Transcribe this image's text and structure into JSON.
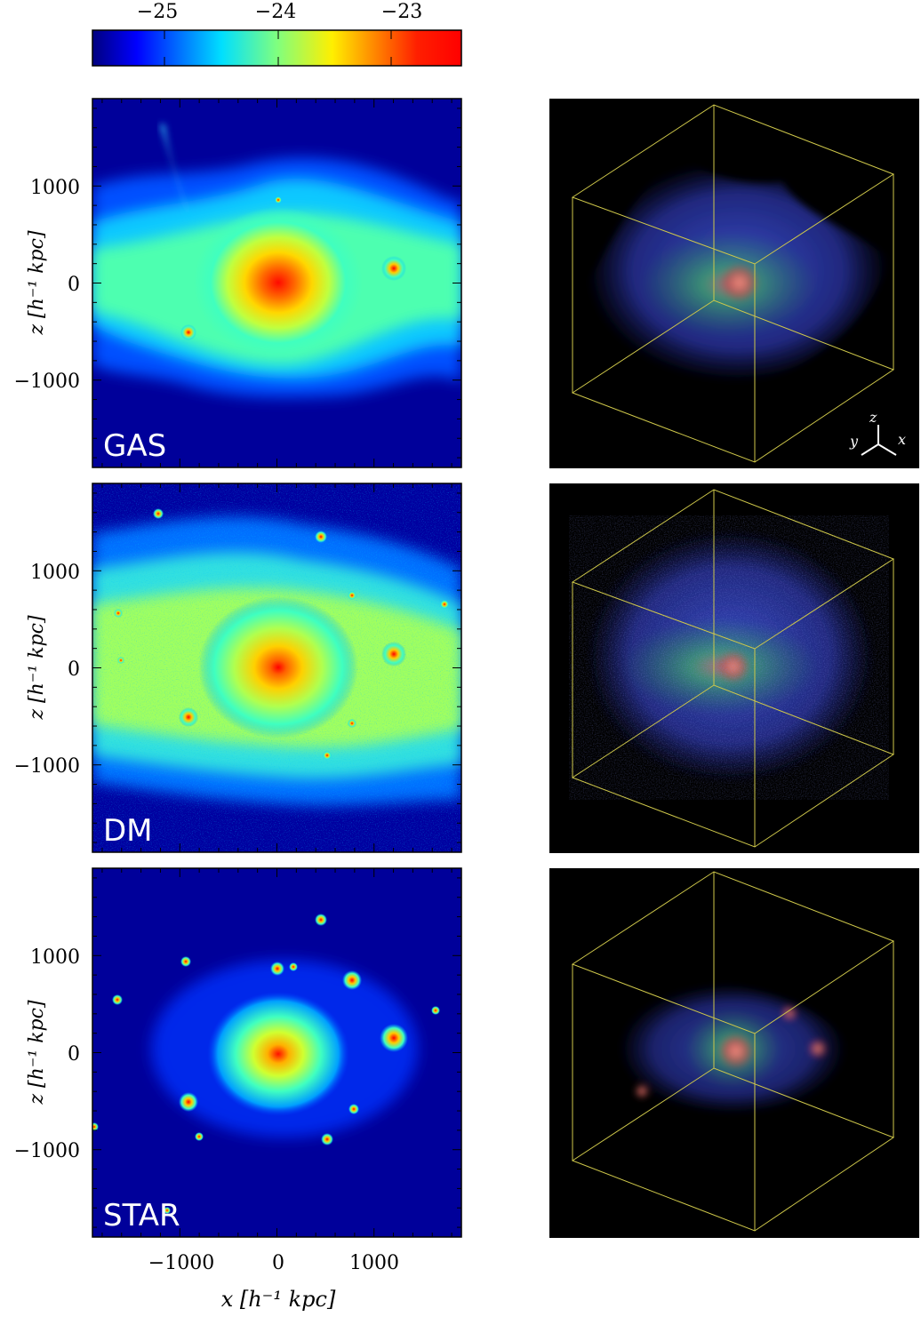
{
  "colorbar": {
    "tick_labels": [
      "−25",
      "−24",
      "−23"
    ],
    "colormap": "jet"
  },
  "panels": [
    {
      "label": "GAS",
      "row": 0
    },
    {
      "label": "DM",
      "row": 1
    },
    {
      "label": "STAR",
      "row": 2
    }
  ],
  "axes": {
    "y_tick_labels": [
      "1000",
      "0",
      "−1000"
    ],
    "x_tick_labels": [
      "−1000",
      "0",
      "1000"
    ],
    "y_axis_label": "z [h⁻¹ kpc]",
    "x_axis_label": "x [h⁻¹ kpc]"
  },
  "triad": {
    "z": "z",
    "y": "y",
    "x": "x"
  },
  "colors": {
    "background_dark": "#000000",
    "cube_edge": "#cfc84a",
    "field_low": "#00007f",
    "field_high": "#ff0000"
  }
}
